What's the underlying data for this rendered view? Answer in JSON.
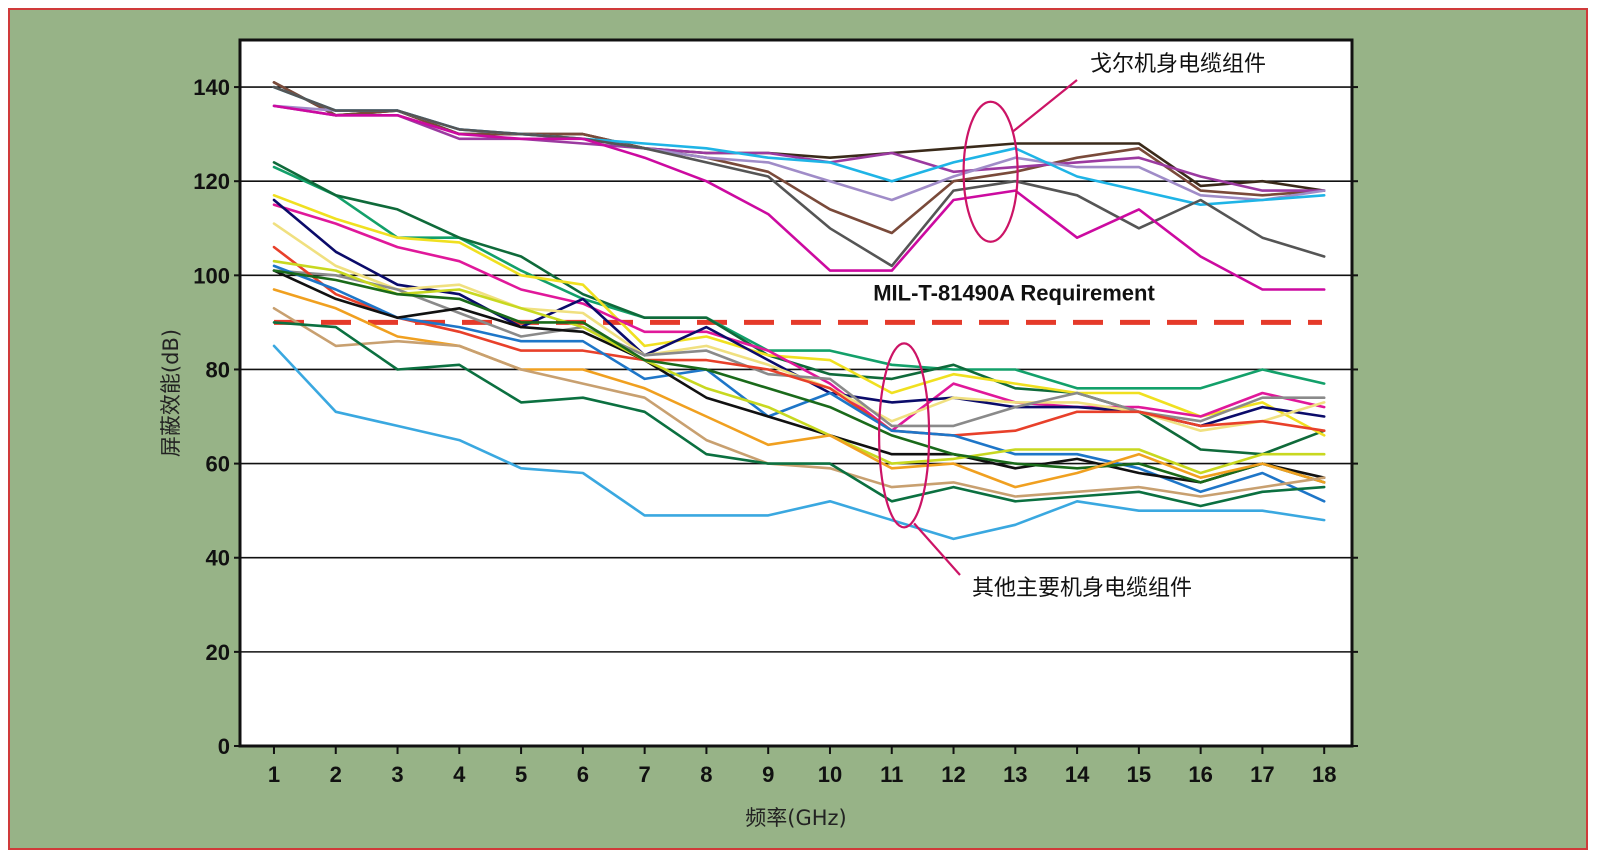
{
  "chart_data": {
    "type": "line",
    "title": "",
    "xlabel": "频率(GHz)",
    "ylabel": "屏蔽效能(dB)",
    "xlim": [
      0.45,
      18.45
    ],
    "ylim": [
      0,
      150
    ],
    "x_ticks": [
      1,
      2,
      3,
      4,
      5,
      6,
      7,
      8,
      9,
      10,
      11,
      12,
      13,
      14,
      15,
      16,
      17,
      18
    ],
    "y_ticks": [
      0,
      20,
      40,
      60,
      80,
      100,
      120,
      140
    ],
    "grid": "horizontal",
    "reference_line": {
      "value": 90,
      "label": "MIL-T-81490A Requirement",
      "color": "#e53a2a",
      "style": "dashed"
    },
    "annotations": [
      {
        "text": "戈尔机身电缆组件",
        "ellipse": {
          "x": 12.6,
          "y": 122
        }
      },
      {
        "text": "其他主要机身电缆组件",
        "ellipse": {
          "x": 11.2,
          "y": 66
        }
      }
    ],
    "x": [
      1,
      2,
      3,
      4,
      5,
      6,
      7,
      8,
      9,
      10,
      11,
      12,
      13,
      14,
      15,
      16,
      17,
      18
    ],
    "series": [
      {
        "color": "#3a2a1a",
        "values": [
          141,
          134,
          135,
          130,
          130,
          130,
          127,
          126,
          126,
          125,
          126,
          127,
          128,
          128,
          128,
          119,
          120,
          118
        ]
      },
      {
        "color": "#7a4a3a",
        "values": [
          141,
          134,
          135,
          130,
          130,
          130,
          127,
          125,
          122,
          114,
          109,
          120,
          122,
          125,
          127,
          118,
          117,
          118
        ]
      },
      {
        "color": "#9b3aa0",
        "values": [
          136,
          134,
          134,
          129,
          129,
          128,
          127,
          126,
          126,
          124,
          126,
          122,
          123,
          124,
          125,
          121,
          118,
          118
        ]
      },
      {
        "color": "#a08cc8",
        "values": [
          136,
          135,
          135,
          131,
          130,
          129,
          127,
          125,
          124,
          120,
          116,
          121,
          125,
          123,
          123,
          117,
          116,
          118
        ]
      },
      {
        "color": "#1fb4e6",
        "values": [
          140,
          135,
          135,
          131,
          130,
          129,
          128,
          127,
          125,
          124,
          120,
          124,
          127,
          121,
          118,
          115,
          116,
          117
        ]
      },
      {
        "color": "#555555",
        "values": [
          140,
          135,
          135,
          131,
          130,
          129,
          127,
          124,
          121,
          110,
          102,
          118,
          120,
          117,
          110,
          116,
          108,
          104
        ]
      },
      {
        "color": "#cc0aa0",
        "values": [
          136,
          134,
          134,
          130,
          129,
          129,
          125,
          120,
          113,
          101,
          101,
          116,
          118,
          108,
          114,
          104,
          97,
          97
        ]
      },
      {
        "color": "#13a06a",
        "values": [
          123,
          117,
          108,
          108,
          101,
          95,
          91,
          91,
          84,
          84,
          81,
          80,
          80,
          76,
          76,
          76,
          80,
          77
        ]
      },
      {
        "color": "#0f6a3a",
        "values": [
          124,
          117,
          114,
          108,
          104,
          96,
          91,
          91,
          83,
          79,
          78,
          81,
          76,
          75,
          71,
          63,
          62,
          67
        ]
      },
      {
        "color": "#f0e020",
        "values": [
          117,
          112,
          108,
          107,
          100,
          98,
          85,
          87,
          83,
          82,
          75,
          79,
          77,
          75,
          75,
          70,
          73,
          66
        ]
      },
      {
        "color": "#e0189a",
        "values": [
          115,
          111,
          106,
          103,
          97,
          94,
          88,
          88,
          84,
          77,
          67,
          77,
          73,
          72,
          72,
          70,
          75,
          72
        ]
      },
      {
        "color": "#0b0b6a",
        "values": [
          116,
          105,
          98,
          96,
          89,
          95,
          83,
          89,
          82,
          75,
          73,
          74,
          72,
          72,
          71,
          68,
          72,
          70
        ]
      },
      {
        "color": "#f0e080",
        "values": [
          111,
          102,
          97,
          98,
          93,
          92,
          83,
          85,
          81,
          76,
          69,
          74,
          73,
          73,
          71,
          67,
          69,
          73
        ]
      },
      {
        "color": "#8a8a8a",
        "values": [
          101,
          100,
          97,
          92,
          87,
          89,
          83,
          84,
          79,
          78,
          68,
          68,
          72,
          75,
          71,
          69,
          74,
          74
        ]
      },
      {
        "color": "#e8402a",
        "values": [
          106,
          96,
          91,
          88,
          84,
          84,
          82,
          82,
          80,
          76,
          67,
          66,
          67,
          71,
          71,
          68,
          69,
          67
        ]
      },
      {
        "color": "#1e76c8",
        "values": [
          102,
          97,
          91,
          89,
          86,
          86,
          78,
          80,
          70,
          75,
          67,
          66,
          62,
          62,
          59,
          54,
          58,
          52
        ]
      },
      {
        "color": "#111111",
        "values": [
          101,
          95,
          91,
          93,
          89,
          88,
          82,
          74,
          70,
          66,
          62,
          62,
          59,
          61,
          58,
          56,
          60,
          57
        ]
      },
      {
        "color": "#c8d820",
        "values": [
          103,
          101,
          96,
          97,
          93,
          89,
          82,
          76,
          72,
          66,
          60,
          61,
          63,
          63,
          63,
          58,
          62,
          62
        ]
      },
      {
        "color": "#1a6a1a",
        "values": [
          101,
          99,
          96,
          95,
          90,
          90,
          82,
          80,
          76,
          72,
          66,
          62,
          60,
          59,
          60,
          56,
          60,
          56
        ]
      },
      {
        "color": "#f0a020",
        "values": [
          97,
          93,
          87,
          85,
          80,
          80,
          76,
          70,
          64,
          66,
          59,
          60,
          55,
          58,
          62,
          57,
          60,
          56
        ]
      },
      {
        "color": "#c8a070",
        "values": [
          93,
          85,
          86,
          85,
          80,
          77,
          74,
          65,
          60,
          59,
          55,
          56,
          53,
          54,
          55,
          53,
          55,
          57
        ]
      },
      {
        "color": "#0b7040",
        "values": [
          90,
          89,
          80,
          81,
          73,
          74,
          71,
          62,
          60,
          60,
          52,
          55,
          52,
          53,
          54,
          51,
          54,
          55
        ]
      },
      {
        "color": "#3aa8e0",
        "values": [
          85,
          71,
          68,
          65,
          59,
          58,
          49,
          49,
          49,
          52,
          48,
          44,
          47,
          52,
          50,
          50,
          50,
          48
        ]
      }
    ]
  }
}
